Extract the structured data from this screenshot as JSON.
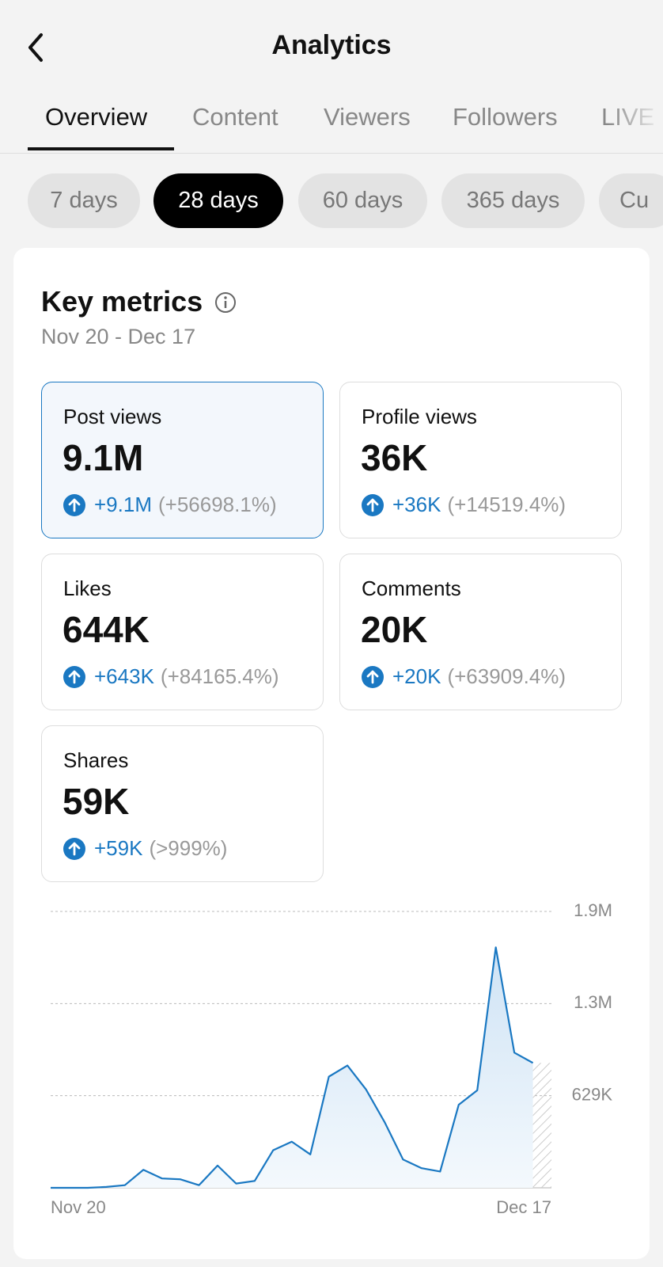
{
  "header": {
    "title": "Analytics"
  },
  "tabs": [
    "Overview",
    "Content",
    "Viewers",
    "Followers",
    "LIVE"
  ],
  "ranges": [
    "7 days",
    "28 days",
    "60 days",
    "365 days",
    "Cu"
  ],
  "card": {
    "title": "Key metrics",
    "date_range": "Nov 20 - Dec 17"
  },
  "metrics": [
    {
      "label": "Post views",
      "value": "9.1M",
      "change": "+9.1M",
      "percent": "(+56698.1%)"
    },
    {
      "label": "Profile views",
      "value": "36K",
      "change": "+36K",
      "percent": "(+14519.4%)"
    },
    {
      "label": "Likes",
      "value": "644K",
      "change": "+643K",
      "percent": "(+84165.4%)"
    },
    {
      "label": "Comments",
      "value": "20K",
      "change": "+20K",
      "percent": "(+63909.4%)"
    },
    {
      "label": "Shares",
      "value": "59K",
      "change": "+59K",
      "percent": "(>999%)"
    }
  ],
  "chart_data": {
    "type": "line",
    "categories": [
      "Nov 20",
      null,
      null,
      null,
      null,
      null,
      null,
      null,
      null,
      null,
      null,
      null,
      null,
      null,
      null,
      null,
      null,
      null,
      null,
      null,
      null,
      null,
      null,
      null,
      null,
      null,
      null,
      "Dec 17"
    ],
    "values": [
      0,
      0,
      0,
      6000,
      18000,
      123000,
      64000,
      58000,
      18000,
      152000,
      29000,
      47000,
      257000,
      315000,
      228000,
      759000,
      835000,
      672000,
      450000,
      193000,
      134000,
      111000,
      567000,
      666000,
      1642000,
      923000,
      853000,
      null
    ],
    "color": "#1a78c2",
    "ylim": [
      0,
      1887000
    ],
    "yticks": [
      {
        "value": 629000,
        "label": "629K"
      },
      {
        "value": 1258000,
        "label": "1.3M"
      },
      {
        "value": 1887000,
        "label": "1.9M"
      }
    ],
    "grid": true
  }
}
